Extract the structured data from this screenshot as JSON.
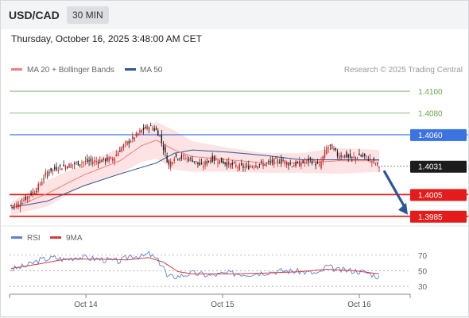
{
  "header": {
    "symbol": "USD/CAD",
    "timeframe": "30 MIN",
    "datetime": "Thursday, October 16, 2025 3:48:00 AM CET"
  },
  "legend": {
    "ma20": "MA 20 + Bollinger Bands",
    "ma50": "MA 50",
    "credit": "Research © 2025 Trading Central",
    "rsi": "RSI",
    "rsi_ma": "9MA"
  },
  "colors": {
    "bull": "#c62828",
    "bear": "#1a1a1a",
    "ma20": "#ef7f7f",
    "ma50": "#2f5597",
    "band_fill": "#fde3e3",
    "resistance": "#6aa84f",
    "pivot": "#3b73e0",
    "support": "#e31b1b",
    "arrow": "#2f5597",
    "rsi_line": "#5b82d8",
    "rsi_ma": "#d93a3a"
  },
  "chart_data": [
    {
      "type": "candlestick",
      "title": "USD/CAD 30 MIN",
      "ylim": [
        1.3975,
        1.4115
      ],
      "x_ticks": [
        "Oct 14",
        "Oct 15",
        "Oct 16"
      ],
      "levels": [
        {
          "value": 1.41,
          "label": "1.4100",
          "role": "resistance"
        },
        {
          "value": 1.408,
          "label": "1.4080",
          "role": "resistance"
        },
        {
          "value": 1.406,
          "label": "1.4060",
          "role": "pivot"
        },
        {
          "value": 1.4031,
          "label": "1.4031",
          "role": "last"
        },
        {
          "value": 1.4005,
          "label": "1.4005",
          "role": "support"
        },
        {
          "value": 1.3985,
          "label": "1.3985",
          "role": "support"
        }
      ],
      "forecast_arrow": {
        "from": 1.4027,
        "to": 1.3985
      },
      "close_path": [
        [
          0,
          1.3995
        ],
        [
          4,
          1.3996
        ],
        [
          9,
          1.4003
        ],
        [
          14,
          1.401
        ],
        [
          20,
          1.4026
        ],
        [
          26,
          1.403
        ],
        [
          32,
          1.4032
        ],
        [
          40,
          1.4035
        ],
        [
          48,
          1.4036
        ],
        [
          56,
          1.4038
        ],
        [
          62,
          1.405
        ],
        [
          68,
          1.4058
        ],
        [
          72,
          1.4064
        ],
        [
          76,
          1.4068
        ],
        [
          80,
          1.4064
        ],
        [
          82,
          1.4059
        ],
        [
          85,
          1.4042
        ],
        [
          87,
          1.4032
        ],
        [
          90,
          1.404
        ],
        [
          95,
          1.4039
        ],
        [
          100,
          1.4037
        ],
        [
          105,
          1.4031
        ],
        [
          110,
          1.4038
        ],
        [
          115,
          1.4036
        ],
        [
          120,
          1.4033
        ],
        [
          125,
          1.4031
        ],
        [
          130,
          1.403
        ],
        [
          135,
          1.4033
        ],
        [
          140,
          1.4033
        ],
        [
          145,
          1.4036
        ],
        [
          150,
          1.4036
        ],
        [
          155,
          1.4032
        ],
        [
          160,
          1.4034
        ],
        [
          165,
          1.4037
        ],
        [
          170,
          1.4031
        ],
        [
          174,
          1.4048
        ],
        [
          177,
          1.4049
        ],
        [
          180,
          1.4041
        ],
        [
          184,
          1.4041
        ],
        [
          188,
          1.4038
        ],
        [
          192,
          1.4041
        ],
        [
          196,
          1.4039
        ],
        [
          200,
          1.4035
        ],
        [
          203,
          1.4031
        ]
      ],
      "ma20_path": [
        [
          0,
          1.3992
        ],
        [
          20,
          1.4006
        ],
        [
          40,
          1.4023
        ],
        [
          60,
          1.4036
        ],
        [
          72,
          1.405
        ],
        [
          80,
          1.4055
        ],
        [
          90,
          1.4046
        ],
        [
          100,
          1.404
        ],
        [
          120,
          1.4037
        ],
        [
          140,
          1.4034
        ],
        [
          160,
          1.4034
        ],
        [
          180,
          1.4036
        ],
        [
          203,
          1.4036
        ]
      ],
      "ma50_path": [
        [
          0,
          1.3993
        ],
        [
          20,
          1.3999
        ],
        [
          40,
          1.4013
        ],
        [
          60,
          1.4024
        ],
        [
          80,
          1.4034
        ],
        [
          90,
          1.4043
        ],
        [
          100,
          1.4046
        ],
        [
          120,
          1.4044
        ],
        [
          140,
          1.4041
        ],
        [
          160,
          1.4037
        ],
        [
          180,
          1.4037
        ],
        [
          203,
          1.4037
        ]
      ],
      "band_width": [
        [
          0,
          0.0006
        ],
        [
          20,
          0.0012
        ],
        [
          40,
          0.001
        ],
        [
          60,
          0.0012
        ],
        [
          72,
          0.0015
        ],
        [
          80,
          0.0017
        ],
        [
          90,
          0.0018
        ],
        [
          100,
          0.0014
        ],
        [
          120,
          0.0011
        ],
        [
          140,
          0.0009
        ],
        [
          160,
          0.0009
        ],
        [
          180,
          0.0012
        ],
        [
          203,
          0.001
        ]
      ]
    },
    {
      "type": "line",
      "title": "",
      "ylim": [
        22,
        80
      ],
      "y_ticks": [
        "70",
        "50",
        "30"
      ],
      "series": [
        {
          "name": "RSI",
          "points": [
            [
              0,
              52
            ],
            [
              8,
              56
            ],
            [
              16,
              64
            ],
            [
              24,
              67
            ],
            [
              30,
              64
            ],
            [
              36,
              68
            ],
            [
              44,
              66
            ],
            [
              52,
              64
            ],
            [
              60,
              62
            ],
            [
              66,
              70
            ],
            [
              72,
              68
            ],
            [
              76,
              72
            ],
            [
              80,
              65
            ],
            [
              84,
              56
            ],
            [
              86,
              42
            ],
            [
              92,
              43
            ],
            [
              100,
              47
            ],
            [
              110,
              44
            ],
            [
              120,
              47
            ],
            [
              130,
              46
            ],
            [
              140,
              48
            ],
            [
              150,
              50
            ],
            [
              160,
              49
            ],
            [
              170,
              46
            ],
            [
              174,
              56
            ],
            [
              180,
              51
            ],
            [
              190,
              50
            ],
            [
              196,
              48
            ],
            [
              203,
              42
            ]
          ]
        },
        {
          "name": "9MA",
          "points": [
            [
              0,
              53
            ],
            [
              16,
              59
            ],
            [
              30,
              65
            ],
            [
              48,
              65
            ],
            [
              64,
              64
            ],
            [
              76,
              67
            ],
            [
              84,
              61
            ],
            [
              92,
              49
            ],
            [
              100,
              46
            ],
            [
              120,
              46
            ],
            [
              140,
              47
            ],
            [
              160,
              49
            ],
            [
              174,
              52
            ],
            [
              190,
              50
            ],
            [
              203,
              46
            ]
          ]
        }
      ]
    }
  ]
}
